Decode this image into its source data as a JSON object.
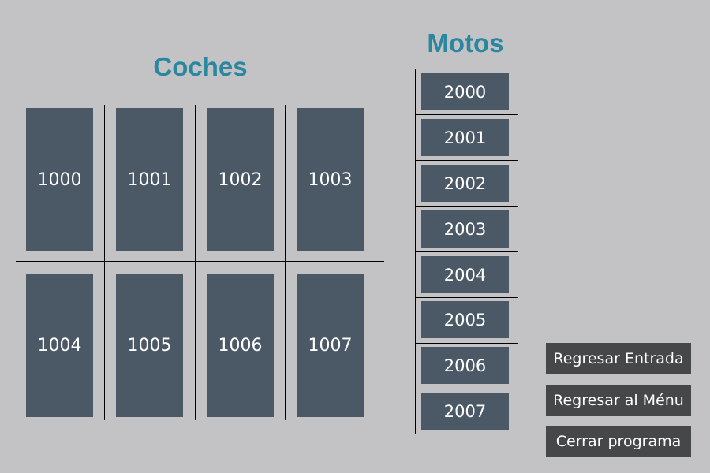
{
  "theme": {
    "background": "#c3c2c5",
    "title_color": "#2b879f",
    "slot_color": "#4b5866",
    "button_color": "#464749",
    "text_color": "#ffffff",
    "line_color": "#000000"
  },
  "cars": {
    "title": "Coches",
    "slots": [
      "1000",
      "1001",
      "1002",
      "1003",
      "1004",
      "1005",
      "1006",
      "1007"
    ]
  },
  "motos": {
    "title": "Motos",
    "slots": [
      "2000",
      "2001",
      "2002",
      "2003",
      "2004",
      "2005",
      "2006",
      "2007"
    ]
  },
  "actions": {
    "return_entry": "Regresar Entrada",
    "return_menu": "Regresar al Ménu",
    "close_program": "Cerrar programa"
  }
}
